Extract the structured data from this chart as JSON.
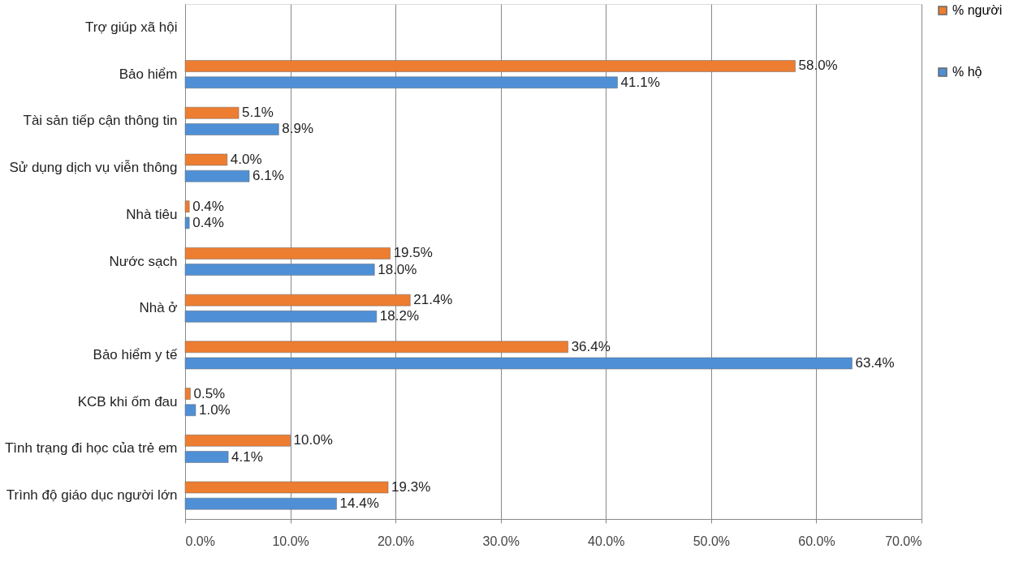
{
  "chart_data": {
    "type": "bar",
    "orientation": "horizontal",
    "categories": [
      "Trợ giúp xã hội",
      "Bảo hiểm",
      "Tài sản tiếp cận thông tin",
      "Sử dụng dịch vụ viễn thông",
      "Nhà tiêu",
      "Nước sạch",
      "Nhà ở",
      "Bảo hiểm y tế",
      "KCB khi ốm đau",
      "Tình trạng đi học của trẻ em",
      "Trình độ giáo dục người lớn"
    ],
    "series": [
      {
        "name": "% người",
        "color": "#ed7d31",
        "values": [
          null,
          58.0,
          5.1,
          4.0,
          0.4,
          19.5,
          21.4,
          36.4,
          0.5,
          10.0,
          19.3
        ],
        "value_labels": [
          null,
          "58.0%",
          "5.1%",
          "4.0%",
          "0.4%",
          "19.5%",
          "21.4%",
          "36.4%",
          "0.5%",
          "10.0%",
          "19.3%"
        ]
      },
      {
        "name": "% hộ",
        "color": "#4f8fd6",
        "values": [
          null,
          41.1,
          8.9,
          6.1,
          0.4,
          18.0,
          18.2,
          63.4,
          1.0,
          4.1,
          14.4
        ],
        "value_labels": [
          null,
          "41.1%",
          "8.9%",
          "6.1%",
          "0.4%",
          "18.0%",
          "18.2%",
          "63.4%",
          "1.0%",
          "4.1%",
          "14.4%"
        ]
      }
    ],
    "xlim": [
      0,
      70
    ],
    "xticks": [
      {
        "value": 0,
        "label": "0.0%"
      },
      {
        "value": 10,
        "label": "10.0%"
      },
      {
        "value": 20,
        "label": "20.0%"
      },
      {
        "value": 30,
        "label": "30.0%"
      },
      {
        "value": 40,
        "label": "40.0%"
      },
      {
        "value": 50,
        "label": "50.0%"
      },
      {
        "value": 60,
        "label": "60.0%"
      },
      {
        "value": 70,
        "label": "70.0%"
      }
    ],
    "grid": "x",
    "legend": "right"
  }
}
